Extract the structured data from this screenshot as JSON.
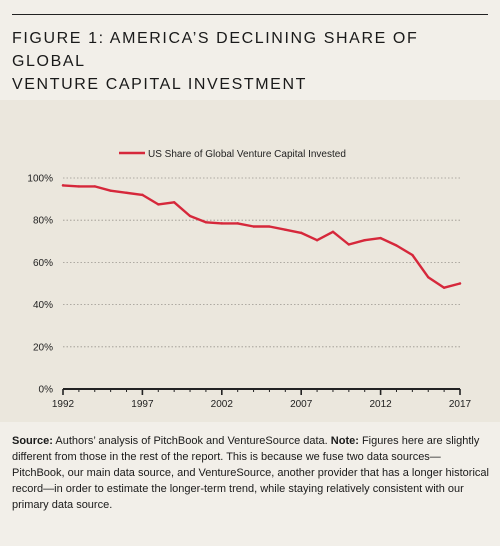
{
  "figure": {
    "title_line1": "FIGURE 1: AMERICA’S DECLINING SHARE OF GLOBAL",
    "title_line2": "VENTURE CAPITAL INVESTMENT"
  },
  "colors": {
    "series": "#d6283b",
    "panel": "#ebe7dd",
    "page": "#f2efe9",
    "axis": "#222222",
    "grid": "#9a968e"
  },
  "chart_data": {
    "type": "line",
    "legend_position": "top",
    "grid": true,
    "x_ticks": [
      "1992",
      "1997",
      "2002",
      "2007",
      "2012",
      "2017"
    ],
    "y_ticks": [
      "0%",
      "20%",
      "40%",
      "60%",
      "80%",
      "100%"
    ],
    "xlim": [
      1992,
      2017
    ],
    "ylim": [
      0,
      100
    ],
    "series": [
      {
        "name": "US Share of Global Venture Capital Invested",
        "x": [
          1992,
          1993,
          1994,
          1995,
          1996,
          1997,
          1998,
          1999,
          2000,
          2001,
          2002,
          2003,
          2004,
          2005,
          2006,
          2007,
          2008,
          2009,
          2010,
          2011,
          2012,
          2013,
          2014,
          2015,
          2016,
          2017
        ],
        "values": [
          96.5,
          96,
          96,
          94,
          93,
          92,
          87.5,
          88.5,
          82,
          79,
          78.5,
          78.5,
          77,
          77,
          75.5,
          74,
          70.5,
          74.5,
          68.5,
          70.5,
          71.5,
          68,
          63.5,
          53,
          48,
          50
        ]
      }
    ]
  },
  "source": {
    "label": "Source:",
    "text": " Authors’ analysis of PitchBook and VentureSource data.  ",
    "note_label": "Note:",
    "note_text": " Figures here are slightly different from those in the rest of the report. This is because we fuse two data sources—PitchBook, our main data source, and VentureSource, another provider that has a longer historical record—in order to estimate the longer-term trend, while staying relatively consistent with our primary data source."
  }
}
